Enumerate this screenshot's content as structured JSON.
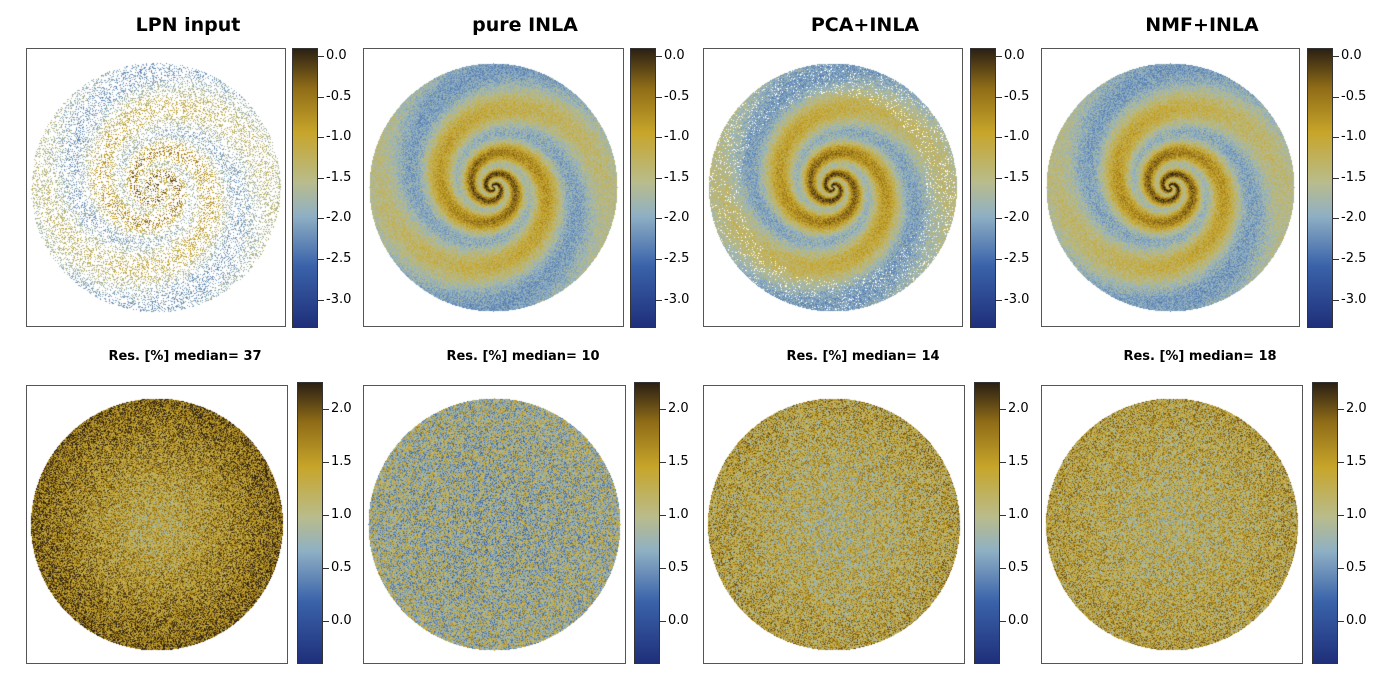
{
  "titles": [
    "LPN input",
    "pure INLA",
    "PCA+INLA",
    "NMF+INLA"
  ],
  "residual_titles": [
    "Res. [%] median= 37",
    "Res. [%]  median= 10",
    "Res. [%]  median= 14",
    "Res. [%]  median= 18"
  ],
  "colors": {
    "low": "#1f2f7a",
    "mid_low": "#3a63aa",
    "mid": "#b9bc8c",
    "mid_high": "#c7a52a",
    "high": "#2b2014",
    "frame": "#555555"
  },
  "chart_data": [
    {
      "type": "heatmap",
      "row": "top",
      "panels": [
        "LPN input",
        "pure INLA",
        "PCA+INLA",
        "NMF+INLA"
      ],
      "colorbar": {
        "range": [
          -3.35,
          0.1
        ],
        "ticks": [
          0.0,
          -0.5,
          -1.0,
          -1.5,
          -2.0,
          -2.5,
          -3.0
        ],
        "tick_labels": [
          "0.0",
          "-0.5",
          "-1.0",
          "-1.5",
          "-2.0",
          "-2.5",
          "-3.0"
        ]
      }
    },
    {
      "type": "heatmap",
      "row": "bottom",
      "panels": [
        "Res. [%] median= 37",
        "Res. [%]  median= 10",
        "Res. [%]  median= 14",
        "Res. [%]  median= 18"
      ],
      "medians": [
        37,
        10,
        14,
        18
      ],
      "colorbar": {
        "range": [
          -0.4,
          2.25
        ],
        "ticks": [
          2.0,
          1.5,
          1.0,
          0.5,
          0.0
        ],
        "tick_labels": [
          "2.0",
          "1.5",
          "1.0",
          "0.5",
          "0.0"
        ]
      }
    }
  ]
}
